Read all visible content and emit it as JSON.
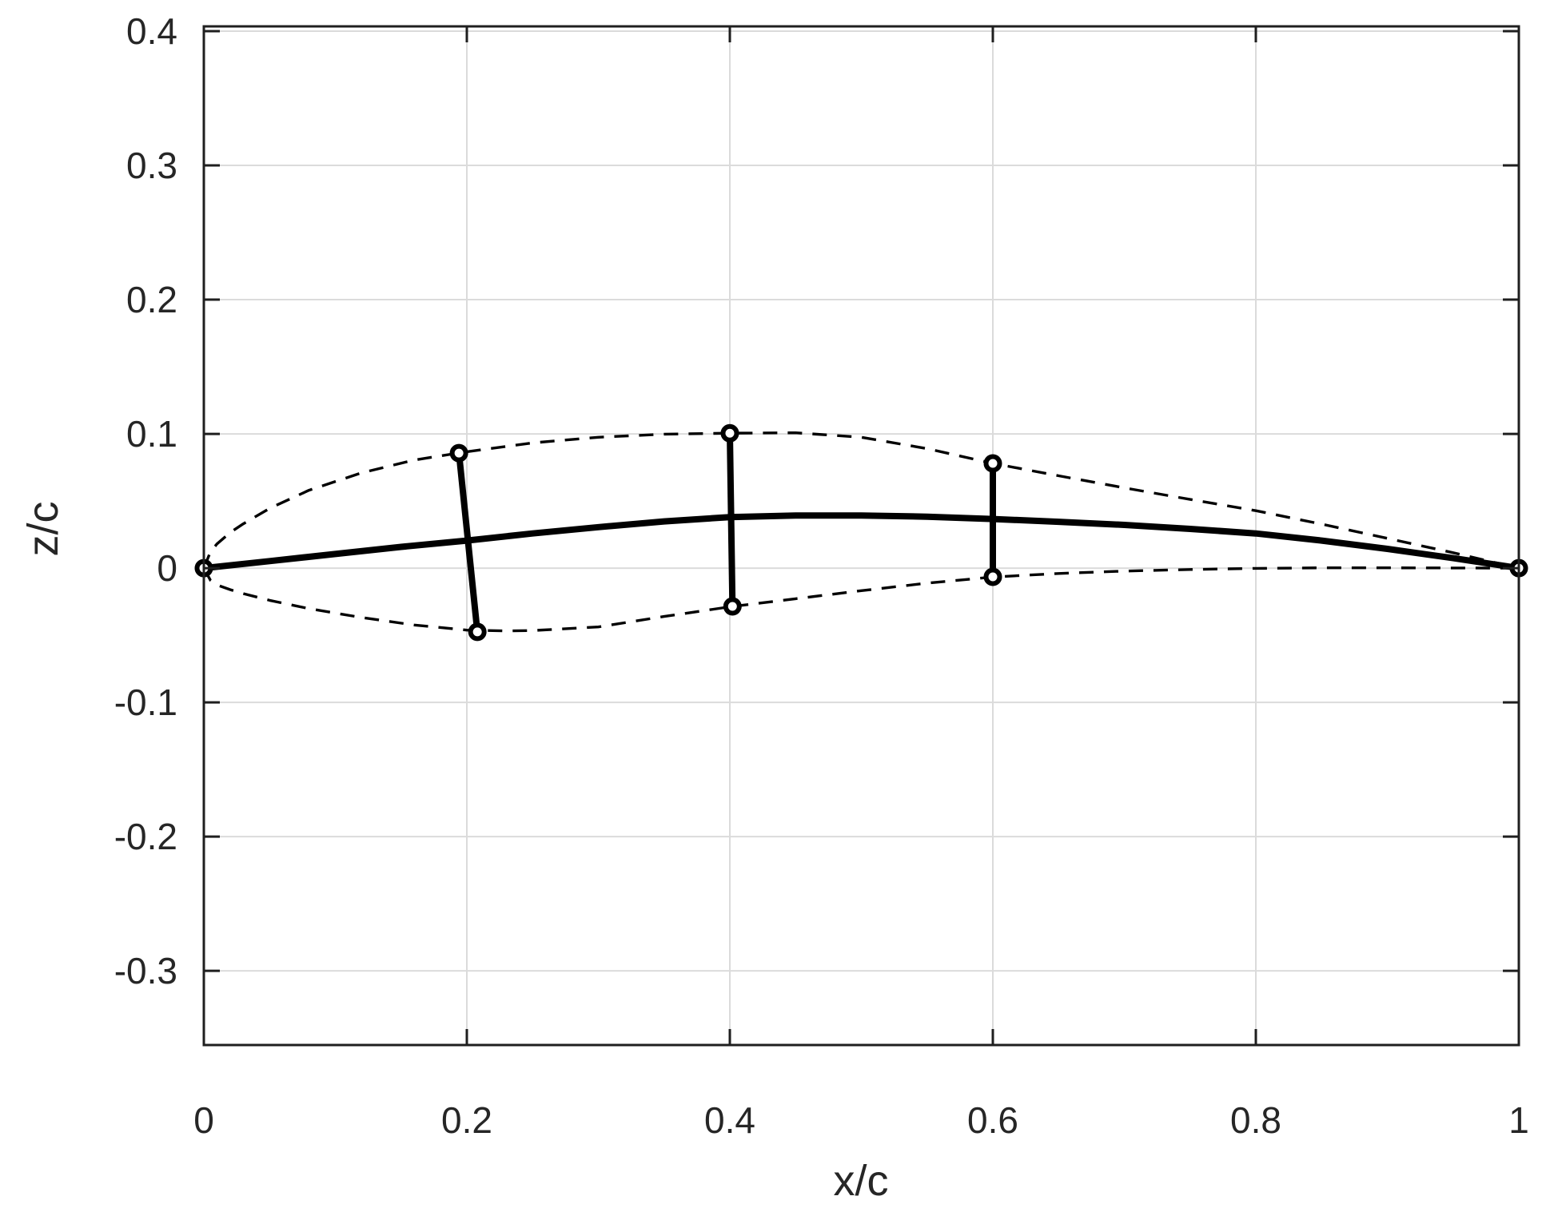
{
  "figure": {
    "background": "#ffffff",
    "axis_color": "#1f1f1f",
    "grid_color": "#dbdbdb",
    "data_color": "#000000",
    "tick_label_color": "#262626"
  },
  "chart_data": {
    "type": "line",
    "title": "",
    "xlabel": "x/c",
    "ylabel": "z/c",
    "xlim": [
      0,
      1
    ],
    "ylim": [
      -0.3553,
      0.4036
    ],
    "grid": true,
    "legend": "none",
    "x_ticks": [
      0,
      0.2,
      0.4,
      0.6,
      0.8,
      1
    ],
    "x_tick_labels": [
      "0",
      "0.2",
      "0.4",
      "0.6",
      "0.8",
      "1"
    ],
    "y_ticks": [
      0.4,
      0.3,
      0.2,
      0.1,
      0,
      -0.1,
      -0.2,
      -0.3
    ],
    "y_tick_labels": [
      "0.4",
      "0.3",
      "0.2",
      "0.1",
      "0",
      "-0.1",
      "-0.2",
      "-0.3"
    ],
    "series": [
      {
        "name": "upper-surface",
        "style": "dashed",
        "points": [
          [
            0,
            0
          ],
          [
            0.005,
            0.012
          ],
          [
            0.01,
            0.018
          ],
          [
            0.02,
            0.0265
          ],
          [
            0.03,
            0.033
          ],
          [
            0.05,
            0.0445
          ],
          [
            0.08,
            0.058
          ],
          [
            0.12,
            0.071
          ],
          [
            0.16,
            0.0805
          ],
          [
            0.2,
            0.0867
          ],
          [
            0.25,
            0.0933
          ],
          [
            0.3,
            0.0975
          ],
          [
            0.35,
            0.0998
          ],
          [
            0.4,
            0.1005
          ],
          [
            0.45,
            0.1008
          ],
          [
            0.5,
            0.0975
          ],
          [
            0.55,
            0.089
          ],
          [
            0.6,
            0.078
          ],
          [
            0.65,
            0.0688
          ],
          [
            0.7,
            0.0598
          ],
          [
            0.75,
            0.0512
          ],
          [
            0.8,
            0.0428
          ],
          [
            0.85,
            0.0328
          ],
          [
            0.9,
            0.0222
          ],
          [
            0.95,
            0.0115
          ],
          [
            1,
            0
          ]
        ]
      },
      {
        "name": "lower-surface",
        "style": "dashed",
        "points": [
          [
            0,
            0
          ],
          [
            0.005,
            -0.009
          ],
          [
            0.01,
            -0.0125
          ],
          [
            0.02,
            -0.016
          ],
          [
            0.03,
            -0.019
          ],
          [
            0.05,
            -0.024
          ],
          [
            0.08,
            -0.0302
          ],
          [
            0.12,
            -0.0368
          ],
          [
            0.16,
            -0.0424
          ],
          [
            0.2,
            -0.0462
          ],
          [
            0.23,
            -0.0468
          ],
          [
            0.25,
            -0.0465
          ],
          [
            0.3,
            -0.0438
          ],
          [
            0.35,
            -0.036
          ],
          [
            0.4,
            -0.0288
          ],
          [
            0.45,
            -0.0228
          ],
          [
            0.5,
            -0.0168
          ],
          [
            0.55,
            -0.0112
          ],
          [
            0.6,
            -0.0066
          ],
          [
            0.65,
            -0.004
          ],
          [
            0.7,
            -0.0022
          ],
          [
            0.75,
            -0.001
          ],
          [
            0.8,
            -0.0002
          ],
          [
            0.85,
            0.0002
          ],
          [
            0.9,
            0.0002
          ],
          [
            0.95,
            0.0001
          ],
          [
            1,
            0
          ]
        ]
      },
      {
        "name": "camber-line",
        "style": "solid-thick",
        "points": [
          [
            0,
            0
          ],
          [
            0.05,
            0.0052
          ],
          [
            0.1,
            0.0105
          ],
          [
            0.15,
            0.0158
          ],
          [
            0.2,
            0.0205
          ],
          [
            0.25,
            0.0258
          ],
          [
            0.3,
            0.0305
          ],
          [
            0.35,
            0.0348
          ],
          [
            0.4,
            0.038
          ],
          [
            0.45,
            0.0392
          ],
          [
            0.5,
            0.0392
          ],
          [
            0.55,
            0.0383
          ],
          [
            0.6,
            0.0366
          ],
          [
            0.65,
            0.0345
          ],
          [
            0.7,
            0.0322
          ],
          [
            0.75,
            0.0292
          ],
          [
            0.8,
            0.0258
          ],
          [
            0.85,
            0.0205
          ],
          [
            0.9,
            0.0143
          ],
          [
            0.95,
            0.0074
          ],
          [
            1,
            0
          ]
        ]
      }
    ],
    "thickness_segments": [
      {
        "name": "thickness-station-0.2",
        "points": [
          [
            0.194,
            0.0857
          ],
          [
            0.208,
            -0.0475
          ]
        ]
      },
      {
        "name": "thickness-station-0.4",
        "points": [
          [
            0.4,
            0.1005
          ],
          [
            0.402,
            -0.0285
          ]
        ]
      },
      {
        "name": "thickness-station-0.6",
        "points": [
          [
            0.6,
            0.078
          ],
          [
            0.6,
            -0.0065
          ]
        ]
      }
    ],
    "markers": [
      {
        "name": "leading-edge",
        "x": 0,
        "z": 0
      },
      {
        "name": "trailing-edge",
        "x": 1,
        "z": 0
      },
      {
        "name": "upper-0.2",
        "x": 0.194,
        "z": 0.0857
      },
      {
        "name": "lower-0.2",
        "x": 0.208,
        "z": -0.0475
      },
      {
        "name": "upper-0.4",
        "x": 0.4,
        "z": 0.1005
      },
      {
        "name": "lower-0.4",
        "x": 0.402,
        "z": -0.0285
      },
      {
        "name": "upper-0.6",
        "x": 0.6,
        "z": 0.078
      },
      {
        "name": "lower-0.6",
        "x": 0.6,
        "z": -0.0065
      }
    ],
    "marker_style": {
      "shape": "open-circle",
      "radius_px": 8.5,
      "stroke_px": 6
    }
  }
}
